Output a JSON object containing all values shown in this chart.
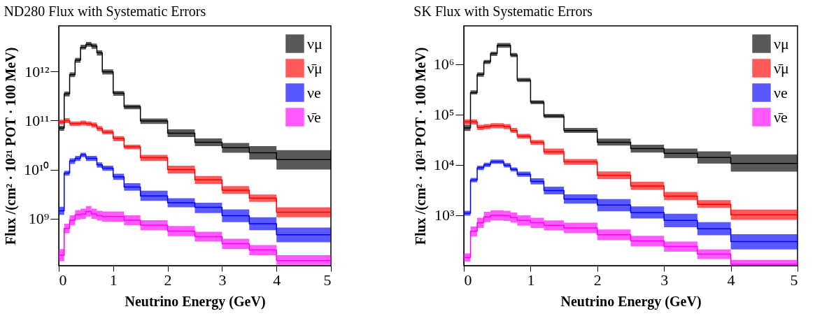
{
  "chart_data": [
    {
      "type": "step",
      "title": "ND280 Flux with Systematic Errors",
      "xlabel": "Neutrino Energy (GeV)",
      "ylabel": "Flux /(cm² · 10²¹ POT · 100 MeV)",
      "log": true,
      "grid": false,
      "legend": "top right",
      "x": [
        0,
        0.1,
        0.2,
        0.3,
        0.4,
        0.5,
        0.6,
        0.7,
        0.8,
        1.0,
        1.2,
        1.5,
        2.0,
        2.5,
        3.0,
        3.5,
        4.0,
        5.0
      ],
      "xlim": [
        0,
        5
      ],
      "xticks": [
        0,
        1,
        2,
        3,
        4,
        5
      ],
      "ylim": [
        110000000.0,
        8500000000000.0
      ],
      "yticks": [
        {
          "value": 1000000000.0,
          "label": "10⁹"
        },
        {
          "value": 10000000000.0,
          "label": "10¹⁰"
        },
        {
          "value": 100000000000.0,
          "label": "10¹¹"
        },
        {
          "value": 1000000000000.0,
          "label": "10¹²"
        }
      ],
      "series": [
        {
          "name": "νμ",
          "color": "#000000",
          "values": [
            70000000000.0,
            350000000000.0,
            860000000000.0,
            1700000000000.0,
            3100000000000.0,
            3600000000000.0,
            3300000000000.0,
            2400000000000.0,
            980000000000.0,
            360000000000.0,
            190000000000.0,
            98000000000.0,
            55000000000.0,
            36000000000.0,
            28000000000.0,
            22000000000.0,
            16000000000.0,
            16000000000.0
          ],
          "lower": [
            62000000000.0,
            310000000000.0,
            770000000000.0,
            1500000000000.0,
            2800000000000.0,
            3200000000000.0,
            2900000000000.0,
            2100000000000.0,
            870000000000.0,
            320000000000.0,
            170000000000.0,
            85000000000.0,
            46000000000.0,
            30000000000.0,
            22000000000.0,
            16000000000.0,
            10000000000.0,
            10000000000.0
          ],
          "upper": [
            78000000000.0,
            390000000000.0,
            960000000000.0,
            1900000000000.0,
            3500000000000.0,
            4000000000000.0,
            3700000000000.0,
            2700000000000.0,
            1100000000000.0,
            400000000000.0,
            210000000000.0,
            110000000000.0,
            66000000000.0,
            43000000000.0,
            35000000000.0,
            30000000000.0,
            25000000000.0,
            25000000000.0
          ]
        },
        {
          "name": "ν̄μ",
          "color": "#ff0000",
          "values": [
            93000000000.0,
            100000000000.0,
            86000000000.0,
            86000000000.0,
            89000000000.0,
            86000000000.0,
            81000000000.0,
            69000000000.0,
            58000000000.0,
            43000000000.0,
            29000000000.0,
            17500000000.0,
            10000000000.0,
            6200000000.0,
            3800000000.0,
            2600000000.0,
            1350000000.0,
            1350000000.0
          ],
          "lower": [
            83000000000.0,
            89000000000.0,
            77000000000.0,
            77000000000.0,
            79000000000.0,
            77000000000.0,
            72000000000.0,
            61000000000.0,
            52000000000.0,
            38000000000.0,
            26000000000.0,
            15000000000.0,
            8300000000.0,
            5100000000.0,
            3200000000.0,
            2200000000.0,
            1070000000.0,
            1070000000.0
          ],
          "upper": [
            104000000000.0,
            112000000000.0,
            96000000000.0,
            96000000000.0,
            100000000000.0,
            96000000000.0,
            91000000000.0,
            77000000000.0,
            65000000000.0,
            48000000000.0,
            32000000000.0,
            20000000000.0,
            12000000000.0,
            7400000000.0,
            4600000000.0,
            3100000000.0,
            1700000000.0,
            1700000000.0
          ]
        },
        {
          "name": "νe",
          "color": "#0000ff",
          "values": [
            1450000000.0,
            8500000000.0,
            15000000000.0,
            17000000000.0,
            20000000000.0,
            17000000000.0,
            17000000000.0,
            12500000000.0,
            10700000000.0,
            7100000000.0,
            4400000000.0,
            2900000000.0,
            2100000000.0,
            1700000000.0,
            1150000000.0,
            790000000.0,
            470000000.0,
            470000000.0
          ],
          "lower": [
            1200000000.0,
            7600000000.0,
            13000000000.0,
            15000000000.0,
            18000000000.0,
            15000000000.0,
            15000000000.0,
            11000000000.0,
            9500000000.0,
            6200000000.0,
            3700000000.0,
            2300000000.0,
            1700000000.0,
            1300000000.0,
            850000000.0,
            580000000.0,
            330000000.0,
            330000000.0
          ],
          "upper": [
            1750000000.0,
            9500000000.0,
            17000000000.0,
            19000000000.0,
            22000000000.0,
            19000000000.0,
            19000000000.0,
            14000000000.0,
            12000000000.0,
            8200000000.0,
            5300000000.0,
            3700000000.0,
            2600000000.0,
            2100000000.0,
            1550000000.0,
            1070000000.0,
            660000000.0,
            660000000.0
          ]
        },
        {
          "name": "ν̄e",
          "color": "#ff00ff",
          "values": [
            180000000.0,
            630000000.0,
            930000000.0,
            1200000000.0,
            1250000000.0,
            1400000000.0,
            1250000000.0,
            1150000000.0,
            1100000000.0,
            1100000000.0,
            930000000.0,
            740000000.0,
            560000000.0,
            430000000.0,
            310000000.0,
            230000000.0,
            140000000.0,
            140000000.0
          ],
          "lower": [
            135000000.0,
            500000000.0,
            730000000.0,
            950000000.0,
            990000000.0,
            1100000000.0,
            990000000.0,
            910000000.0,
            870000000.0,
            870000000.0,
            730000000.0,
            580000000.0,
            440000000.0,
            340000000.0,
            240000000.0,
            180000000.0,
            115000000.0,
            115000000.0
          ],
          "upper": [
            240000000.0,
            790000000.0,
            1170000000.0,
            1500000000.0,
            1600000000.0,
            1800000000.0,
            1600000000.0,
            1450000000.0,
            1400000000.0,
            1400000000.0,
            1170000000.0,
            930000000.0,
            710000000.0,
            540000000.0,
            390000000.0,
            290000000.0,
            180000000.0,
            180000000.0
          ]
        }
      ]
    },
    {
      "type": "step",
      "title": "SK Flux with Systematic Errors",
      "xlabel": "Neutrino Energy (GeV)",
      "ylabel": "Flux /(cm² · 10²¹ POT · 100 MeV)",
      "log": true,
      "grid": false,
      "legend": "top right",
      "x": [
        0,
        0.1,
        0.2,
        0.3,
        0.4,
        0.5,
        0.6,
        0.7,
        0.8,
        1.0,
        1.2,
        1.5,
        2.0,
        2.5,
        3.0,
        3.5,
        4.0,
        5.0
      ],
      "xlim": [
        0,
        5
      ],
      "xticks": [
        0,
        1,
        2,
        3,
        4,
        5
      ],
      "ylim": [
        100,
        5700000.0
      ],
      "yticks": [
        {
          "value": 1000,
          "label": "10³"
        },
        {
          "value": 10000,
          "label": "10⁴"
        },
        {
          "value": 100000,
          "label": "10⁵"
        },
        {
          "value": 1000000,
          "label": "10⁶"
        }
      ],
      "series": [
        {
          "name": "νμ",
          "color": "#000000",
          "values": [
            54000.0,
            270000.0,
            620000.0,
            1100000.0,
            1600000.0,
            2350000.0,
            2350000.0,
            1500000.0,
            480000.0,
            175000.0,
            93000.0,
            48000.0,
            28000.0,
            21000.0,
            17000.0,
            14000.0,
            10700.0,
            10700.0
          ],
          "lower": [
            47000.0,
            250000.0,
            560000.0,
            1000000.0,
            1450000.0,
            2100000.0,
            2100000.0,
            1370000.0,
            440000.0,
            160000.0,
            85000.0,
            43000.0,
            24000.0,
            17500.0,
            13500.0,
            10600.0,
            7300.0,
            7300.0
          ],
          "upper": [
            62000.0,
            300000.0,
            680000.0,
            1200000.0,
            1750000.0,
            2600000.0,
            2600000.0,
            1650000.0,
            530000.0,
            190000.0,
            102000.0,
            54000.0,
            33000.0,
            25000.0,
            21000.0,
            18500.0,
            16000.0,
            16000.0
          ]
        },
        {
          "name": "ν̄μ",
          "color": "#ff0000",
          "values": [
            71000.0,
            71000.0,
            55000.0,
            57000.0,
            60000.0,
            60000.0,
            57000.0,
            48000.0,
            37000.0,
            28000.0,
            18000.0,
            11500.0,
            6200.0,
            3800.0,
            2400.0,
            1650.0,
            1020.0,
            1020.0
          ],
          "lower": [
            63000.0,
            63000.0,
            49000.0,
            51000.0,
            53000.0,
            53000.0,
            51000.0,
            43000.0,
            33000.0,
            25000.0,
            16000.0,
            10000.0,
            5200.0,
            3200.0,
            2000.0,
            1400.0,
            810.0,
            810.0
          ],
          "upper": [
            80000.0,
            80000.0,
            62000.0,
            64000.0,
            67000.0,
            67000.0,
            64000.0,
            54000.0,
            41000.0,
            31000.0,
            21000.0,
            13000.0,
            7400.0,
            4600.0,
            2900.0,
            2000.0,
            1300.0,
            1300.0
          ]
        },
        {
          "name": "νe",
          "color": "#0000ff",
          "values": [
            1100.0,
            5000.0,
            8700.0,
            10000.0,
            11500.0,
            11500.0,
            9800.0,
            8100.0,
            6500.0,
            4700.0,
            3100.0,
            2100.0,
            1600.0,
            1130.0,
            790.0,
            540.0,
            300.0,
            300.0
          ],
          "lower": [
            980.0,
            4500.0,
            7900.0,
            9100.0,
            10500.0,
            10500.0,
            8900.0,
            7400.0,
            5800.0,
            4100.0,
            2600.0,
            1700.0,
            1200.0,
            860.0,
            580.0,
            400.0,
            210.0,
            210.0
          ],
          "upper": [
            1230.0,
            5500.0,
            9600.0,
            11000.0,
            12700.0,
            12700.0,
            10800.0,
            8900.0,
            7300.0,
            5400.0,
            3700.0,
            2600.0,
            2100.0,
            1500.0,
            1070.0,
            730.0,
            420.0,
            420.0
          ]
        },
        {
          "name": "ν̄e",
          "color": "#ff00ff",
          "values": [
            145.0,
            480.0,
            710.0,
            930.0,
            1000.0,
            1000.0,
            980.0,
            900.0,
            790.0,
            710.0,
            630.0,
            560.0,
            410.0,
            310.0,
            240.0,
            170.0,
            107.0,
            107.0
          ],
          "lower": [
            120.0,
            380.0,
            560.0,
            730.0,
            790.0,
            790.0,
            770.0,
            710.0,
            620.0,
            560.0,
            500.0,
            440.0,
            320.0,
            240.0,
            190.0,
            135.0,
            100.0,
            100.0
          ],
          "upper": [
            175.0,
            600.0,
            890.0,
            1170.0,
            1260.0,
            1260.0,
            1230.0,
            1130.0,
            1000.0,
            890.0,
            790.0,
            710.0,
            520.0,
            390.0,
            300.0,
            210.0,
            130.0,
            130.0
          ]
        }
      ]
    }
  ]
}
